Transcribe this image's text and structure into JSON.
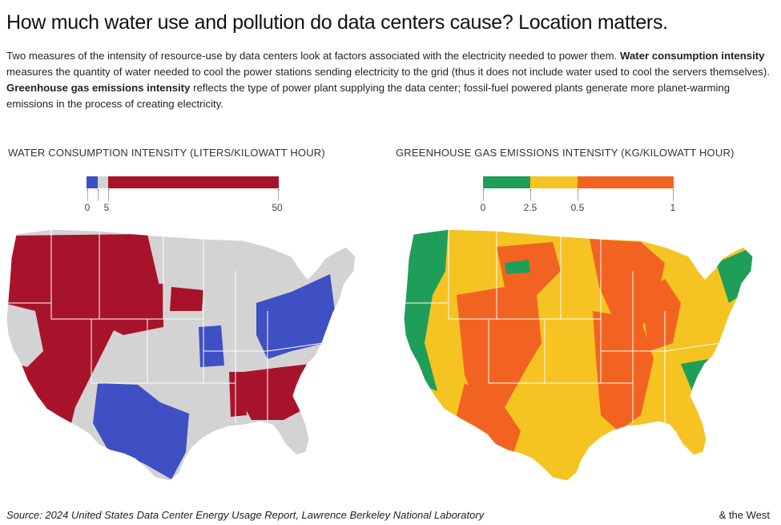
{
  "title": "How much water use and pollution do data centers cause? Location matters.",
  "intro": {
    "p1": "Two measures of the intensity of resource-use by data centers look at factors associated with the electricity needed to power them.",
    "b1": "Water consumption intensity",
    "p2": "measures the quantity of water needed to cool the power stations sending electricity to the grid (thus it does not include water used to cool the servers themselves).",
    "b2": "Greenhouse gas emissions intensity",
    "p3": "reflects the type of power plant supplying the data center; fossil-fuel powered plants generate more planet-warming emissions in the process of creating electricity."
  },
  "water_map": {
    "legend_title": "WATER CONSUMPTION INTENSITY (LITERS/KILOWATT HOUR)",
    "ticks": [
      "0",
      "5",
      "50"
    ],
    "colors": {
      "low": "#3f4fc4",
      "mid": "#d3d3d3",
      "high": "#a8132c",
      "border": "#ffffff"
    }
  },
  "ghg_map": {
    "legend_title": "GREENHOUSE GAS EMISSIONS INTENSITY (KG/KILOWATT HOUR)",
    "ticks": [
      "0",
      "2.5",
      "0.5",
      "1"
    ],
    "colors": {
      "low": "#1f9e5a",
      "mid": "#f5c322",
      "high": "#f26322",
      "border": "#ffffff"
    }
  },
  "footer": {
    "source": "Source: 2024 United States Data Center Energy Usage Report, Lawrence Berkeley National Laboratory",
    "brand": "& the West"
  }
}
